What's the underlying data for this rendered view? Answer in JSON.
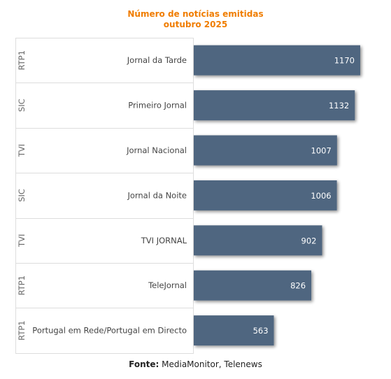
{
  "chart_data": {
    "type": "bar",
    "orientation": "horizontal",
    "title": "Número de notícias emitidas",
    "subtitle": "outubro 2025",
    "categories": [
      {
        "channel": "RTP1",
        "program": "Jornal da Tarde",
        "value": 1170
      },
      {
        "channel": "SIC",
        "program": "Primeiro Jornal",
        "value": 1132
      },
      {
        "channel": "TVI",
        "program": "Jornal Nacional",
        "value": 1007
      },
      {
        "channel": "SIC",
        "program": "Jornal da Noite",
        "value": 1006
      },
      {
        "channel": "TVI",
        "program": "TVI JORNAL",
        "value": 902
      },
      {
        "channel": "RTP1",
        "program": "TeleJornal",
        "value": 826
      },
      {
        "channel": "RTP1",
        "program": "Portugal em Rede/Portugal em Directo",
        "value": 563
      }
    ],
    "xlim": [
      0,
      1170
    ],
    "grid": false,
    "legend": "none",
    "bar_color": "#4f6680",
    "data_label_color": "#ffffff"
  },
  "source": {
    "label": "Fonte:",
    "text": "MediaMonitor, Telenews"
  }
}
